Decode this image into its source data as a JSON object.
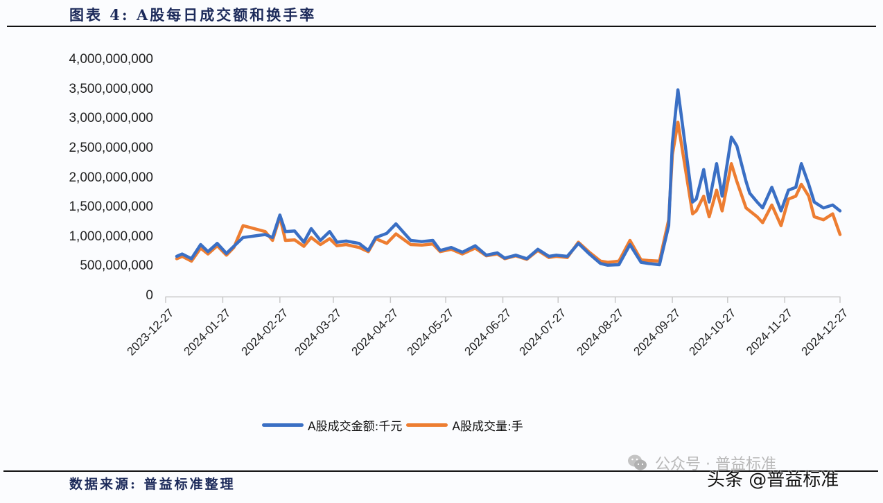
{
  "header": {
    "title": "图表 4:  A股每日成交额和换手率"
  },
  "footer": {
    "source": "数据来源: 普益标准整理",
    "watermark_wechat": "公众号 · 普益标准",
    "watermark_toutiao": "头条 @普益标准"
  },
  "legend": {
    "items": [
      {
        "label": "A股成交金额:千元",
        "color": "#3a6fc4"
      },
      {
        "label": "A股成交量:手",
        "color": "#ed7d31"
      }
    ]
  },
  "axis": {
    "y_ticks": [
      "4,000,000,000",
      "3,500,000,000",
      "3,000,000,000",
      "2,500,000,000",
      "2,000,000,000",
      "1,500,000,000",
      "1,000,000,000",
      "500,000,000",
      "0"
    ],
    "x_ticks": [
      "2023-12-27",
      "2024-01-27",
      "2024-02-27",
      "2024-03-27",
      "2024-04-27",
      "2024-05-27",
      "2024-06-27",
      "2024-07-27",
      "2024-08-27",
      "2024-09-27",
      "2024-10-27",
      "2024-11-27",
      "2024-12-27"
    ]
  },
  "chart_data": {
    "type": "line",
    "title": "图表 4: A股每日成交额和换手率",
    "xlabel": "",
    "ylabel": "",
    "ylim": [
      0,
      4000000000
    ],
    "xlim": [
      "2023-12-27",
      "2024-12-27"
    ],
    "grid": false,
    "legend_position": "bottom",
    "x_ticks": [
      "2023-12-27",
      "2024-01-27",
      "2024-02-27",
      "2024-03-27",
      "2024-04-27",
      "2024-05-27",
      "2024-06-27",
      "2024-07-27",
      "2024-08-27",
      "2024-09-27",
      "2024-10-27",
      "2024-11-27",
      "2024-12-27"
    ],
    "y_ticks": [
      0,
      500000000,
      1000000000,
      1500000000,
      2000000000,
      2500000000,
      3000000000,
      3500000000,
      4000000000
    ],
    "x": [
      "2024-01-02",
      "2024-01-05",
      "2024-01-10",
      "2024-01-15",
      "2024-01-19",
      "2024-01-24",
      "2024-01-29",
      "2024-02-02",
      "2024-02-07",
      "2024-02-19",
      "2024-02-23",
      "2024-02-27",
      "2024-03-01",
      "2024-03-06",
      "2024-03-11",
      "2024-03-15",
      "2024-03-20",
      "2024-03-25",
      "2024-03-29",
      "2024-04-03",
      "2024-04-10",
      "2024-04-15",
      "2024-04-19",
      "2024-04-25",
      "2024-04-30",
      "2024-05-08",
      "2024-05-14",
      "2024-05-20",
      "2024-05-24",
      "2024-05-30",
      "2024-06-05",
      "2024-06-12",
      "2024-06-18",
      "2024-06-24",
      "2024-06-28",
      "2024-07-04",
      "2024-07-10",
      "2024-07-16",
      "2024-07-22",
      "2024-07-26",
      "2024-08-01",
      "2024-08-07",
      "2024-08-13",
      "2024-08-19",
      "2024-08-23",
      "2024-08-29",
      "2024-09-04",
      "2024-09-10",
      "2024-09-14",
      "2024-09-20",
      "2024-09-25",
      "2024-09-27",
      "2024-09-30",
      "2024-10-08",
      "2024-10-10",
      "2024-10-14",
      "2024-10-17",
      "2024-10-21",
      "2024-10-24",
      "2024-10-29",
      "2024-11-01",
      "2024-11-06",
      "2024-11-08",
      "2024-11-12",
      "2024-11-15",
      "2024-11-20",
      "2024-11-25",
      "2024-11-29",
      "2024-12-03",
      "2024-12-06",
      "2024-12-10",
      "2024-12-13",
      "2024-12-18",
      "2024-12-23",
      "2024-12-27"
    ],
    "series": [
      {
        "name": "A股成交金额:千元",
        "color": "#3a6fc4",
        "values": [
          680000000,
          720000000,
          640000000,
          880000000,
          760000000,
          900000000,
          730000000,
          850000000,
          1000000000,
          1050000000,
          1000000000,
          1380000000,
          1100000000,
          1110000000,
          920000000,
          1150000000,
          950000000,
          1100000000,
          920000000,
          940000000,
          900000000,
          780000000,
          1000000000,
          1070000000,
          1230000000,
          950000000,
          930000000,
          950000000,
          780000000,
          830000000,
          750000000,
          860000000,
          700000000,
          740000000,
          650000000,
          700000000,
          640000000,
          800000000,
          680000000,
          700000000,
          680000000,
          900000000,
          720000000,
          560000000,
          530000000,
          540000000,
          880000000,
          580000000,
          560000000,
          540000000,
          1200000000,
          2600000000,
          3500000000,
          1600000000,
          1650000000,
          2150000000,
          1600000000,
          2250000000,
          1700000000,
          2700000000,
          2550000000,
          1950000000,
          1750000000,
          1600000000,
          1500000000,
          1850000000,
          1450000000,
          1800000000,
          1850000000,
          2250000000,
          1900000000,
          1600000000,
          1500000000,
          1550000000,
          1450000000
        ]
      },
      {
        "name": "A股成交量:手",
        "color": "#ed7d31",
        "values": [
          640000000,
          680000000,
          600000000,
          820000000,
          720000000,
          860000000,
          700000000,
          830000000,
          1200000000,
          1100000000,
          950000000,
          1350000000,
          950000000,
          960000000,
          850000000,
          1000000000,
          880000000,
          980000000,
          860000000,
          880000000,
          830000000,
          760000000,
          980000000,
          900000000,
          1060000000,
          880000000,
          870000000,
          890000000,
          760000000,
          800000000,
          720000000,
          820000000,
          690000000,
          720000000,
          640000000,
          690000000,
          630000000,
          780000000,
          660000000,
          680000000,
          660000000,
          920000000,
          750000000,
          600000000,
          580000000,
          600000000,
          950000000,
          620000000,
          610000000,
          600000000,
          1300000000,
          2400000000,
          2950000000,
          1400000000,
          1450000000,
          1700000000,
          1350000000,
          1800000000,
          1450000000,
          2250000000,
          1950000000,
          1500000000,
          1450000000,
          1350000000,
          1250000000,
          1550000000,
          1200000000,
          1650000000,
          1700000000,
          1900000000,
          1700000000,
          1350000000,
          1300000000,
          1400000000,
          1050000000
        ]
      }
    ]
  }
}
